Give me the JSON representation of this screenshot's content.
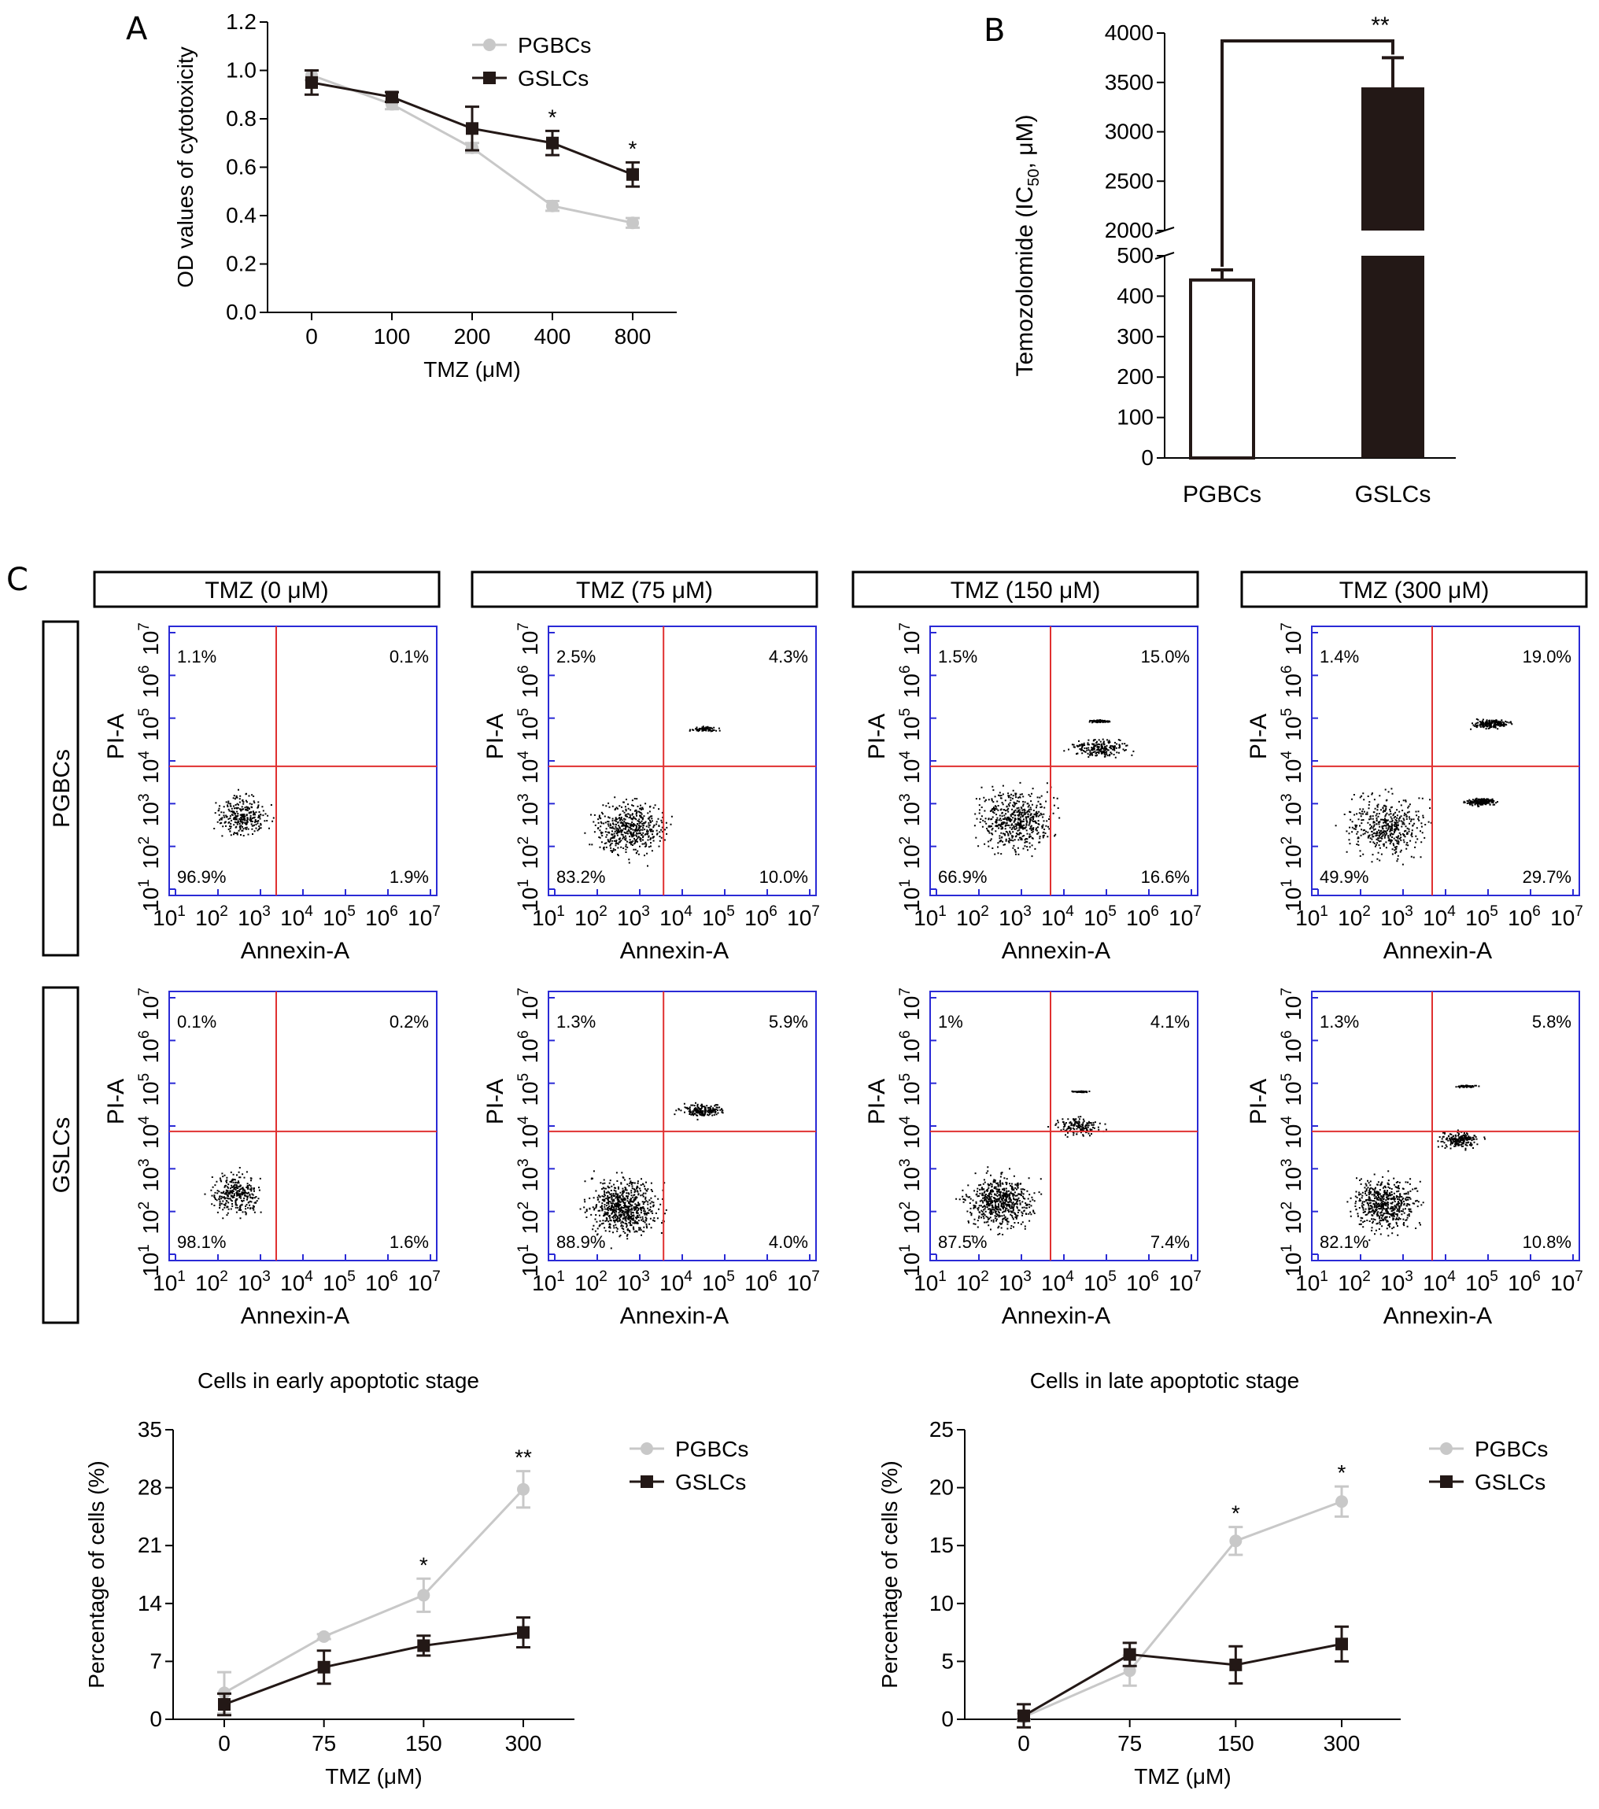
{
  "panel_letters": {
    "a": "A",
    "b": "B",
    "c": "C"
  },
  "chart_data": [
    {
      "id": "A",
      "type": "line",
      "title": "",
      "xlabel": "TMZ (μM)",
      "ylabel": "OD values of cytotoxicity",
      "categories": [
        "0",
        "100",
        "200",
        "400",
        "800"
      ],
      "ylim": [
        0,
        1.2
      ],
      "yticks": [
        "0.0",
        "0.2",
        "0.4",
        "0.6",
        "0.8",
        "1.0",
        "1.2"
      ],
      "series": [
        {
          "name": "PGBCs",
          "values": [
            0.98,
            0.86,
            0.68,
            0.44,
            0.37
          ],
          "errors": [
            0.02,
            0.02,
            0.02,
            0.02,
            0.02
          ],
          "color": "#c8c8c8"
        },
        {
          "name": "GSLCs",
          "values": [
            0.95,
            0.89,
            0.76,
            0.7,
            0.57
          ],
          "errors": [
            0.05,
            0.02,
            0.09,
            0.05,
            0.05
          ],
          "color": "#231816"
        }
      ],
      "significance": [
        {
          "category": "400",
          "label": "*"
        },
        {
          "category": "800",
          "label": "*"
        }
      ],
      "legend": "top-right"
    },
    {
      "id": "B",
      "type": "bar",
      "title": "",
      "xlabel": "",
      "ylabel_main": "Temozolomide (IC",
      "ylabel_sub": "50",
      "ylabel_tail": ", μM)",
      "categories": [
        "PGBCs",
        "GSLCs"
      ],
      "values": [
        440,
        3450
      ],
      "errors": [
        25,
        300
      ],
      "colors": [
        "#ffffff",
        "#231816"
      ],
      "lower_ticks": [
        "0",
        "100",
        "200",
        "300",
        "400",
        "500"
      ],
      "upper_ticks": [
        "2000",
        "2500",
        "3000",
        "3500",
        "4000"
      ],
      "axis_break": [
        500,
        2000
      ],
      "significance": "**"
    },
    {
      "id": "C",
      "type": "scatter",
      "xlabel": "Annexin-A",
      "ylabel": "PI-A",
      "ticks": [
        "10",
        "10",
        "10",
        "10",
        "10",
        "10",
        "10"
      ],
      "tick_exponents": [
        "1",
        "2",
        "3",
        "4",
        "5",
        "6",
        "7"
      ],
      "row_labels": [
        "PGBCs",
        "GSLCs"
      ],
      "conditions": [
        "TMZ (0 μM)",
        "TMZ (75 μM)",
        "TMZ (150 μM)",
        "TMZ (300 μM)"
      ],
      "quadrants": [
        [
          {
            "ul": "1.1%",
            "ur": "0.1%",
            "ll": "96.9%",
            "lr": "1.9%"
          },
          {
            "ul": "2.5%",
            "ur": "4.3%",
            "ll": "83.2%",
            "lr": "10.0%"
          },
          {
            "ul": "1.5%",
            "ur": "15.0%",
            "ll": "66.9%",
            "lr": "16.6%"
          },
          {
            "ul": "1.4%",
            "ur": "19.0%",
            "ll": "49.9%",
            "lr": "29.7%"
          }
        ],
        [
          {
            "ul": "0.1%",
            "ur": "0.2%",
            "ll": "98.1%",
            "lr": "1.6%"
          },
          {
            "ul": "1.3%",
            "ur": "5.9%",
            "ll": "88.9%",
            "lr": "4.0%"
          },
          {
            "ul": "1%",
            "ur": "4.1%",
            "ll": "87.5%",
            "lr": "7.4%"
          },
          {
            "ul": "1.3%",
            "ur": "5.8%",
            "ll": "82.1%",
            "lr": "10.8%"
          }
        ]
      ]
    },
    {
      "id": "D",
      "type": "line",
      "title": "Cells in early apoptotic stage",
      "xlabel": "TMZ (μM)",
      "ylabel": "Percentage of cells (%)",
      "categories": [
        "0",
        "75",
        "150",
        "300"
      ],
      "ylim": [
        0,
        35
      ],
      "yticks": [
        "0",
        "7",
        "14",
        "21",
        "28",
        "35"
      ],
      "series": [
        {
          "name": "PGBCs",
          "values": [
            3.2,
            10.0,
            15.0,
            27.8
          ],
          "errors": [
            2.5,
            0.3,
            2.0,
            2.2
          ],
          "color": "#c8c8c8"
        },
        {
          "name": "GSLCs",
          "values": [
            1.8,
            6.3,
            8.9,
            10.5
          ],
          "errors": [
            1.3,
            2.0,
            1.2,
            1.8
          ],
          "color": "#231816"
        }
      ],
      "significance": [
        {
          "category": "150",
          "label": "*"
        },
        {
          "category": "300",
          "label": "**"
        }
      ],
      "legend": "top-right"
    },
    {
      "id": "E",
      "type": "line",
      "title": "Cells in late apoptotic stage",
      "xlabel": "TMZ (μM)",
      "ylabel": "Percentage of cells (%)",
      "categories": [
        "0",
        "75",
        "150",
        "300"
      ],
      "ylim": [
        0,
        25
      ],
      "yticks": [
        "0",
        "5",
        "10",
        "15",
        "20",
        "25"
      ],
      "series": [
        {
          "name": "PGBCs",
          "values": [
            0.2,
            4.2,
            15.4,
            18.8
          ],
          "errors": [
            0.3,
            1.3,
            1.2,
            1.3
          ],
          "color": "#c8c8c8"
        },
        {
          "name": "GSLCs",
          "values": [
            0.3,
            5.6,
            4.7,
            6.5
          ],
          "errors": [
            1.0,
            1.0,
            1.6,
            1.5
          ],
          "color": "#231816"
        }
      ],
      "significance": [
        {
          "category": "150",
          "label": "*"
        },
        {
          "category": "300",
          "label": "*"
        }
      ],
      "legend": "top-right"
    }
  ]
}
